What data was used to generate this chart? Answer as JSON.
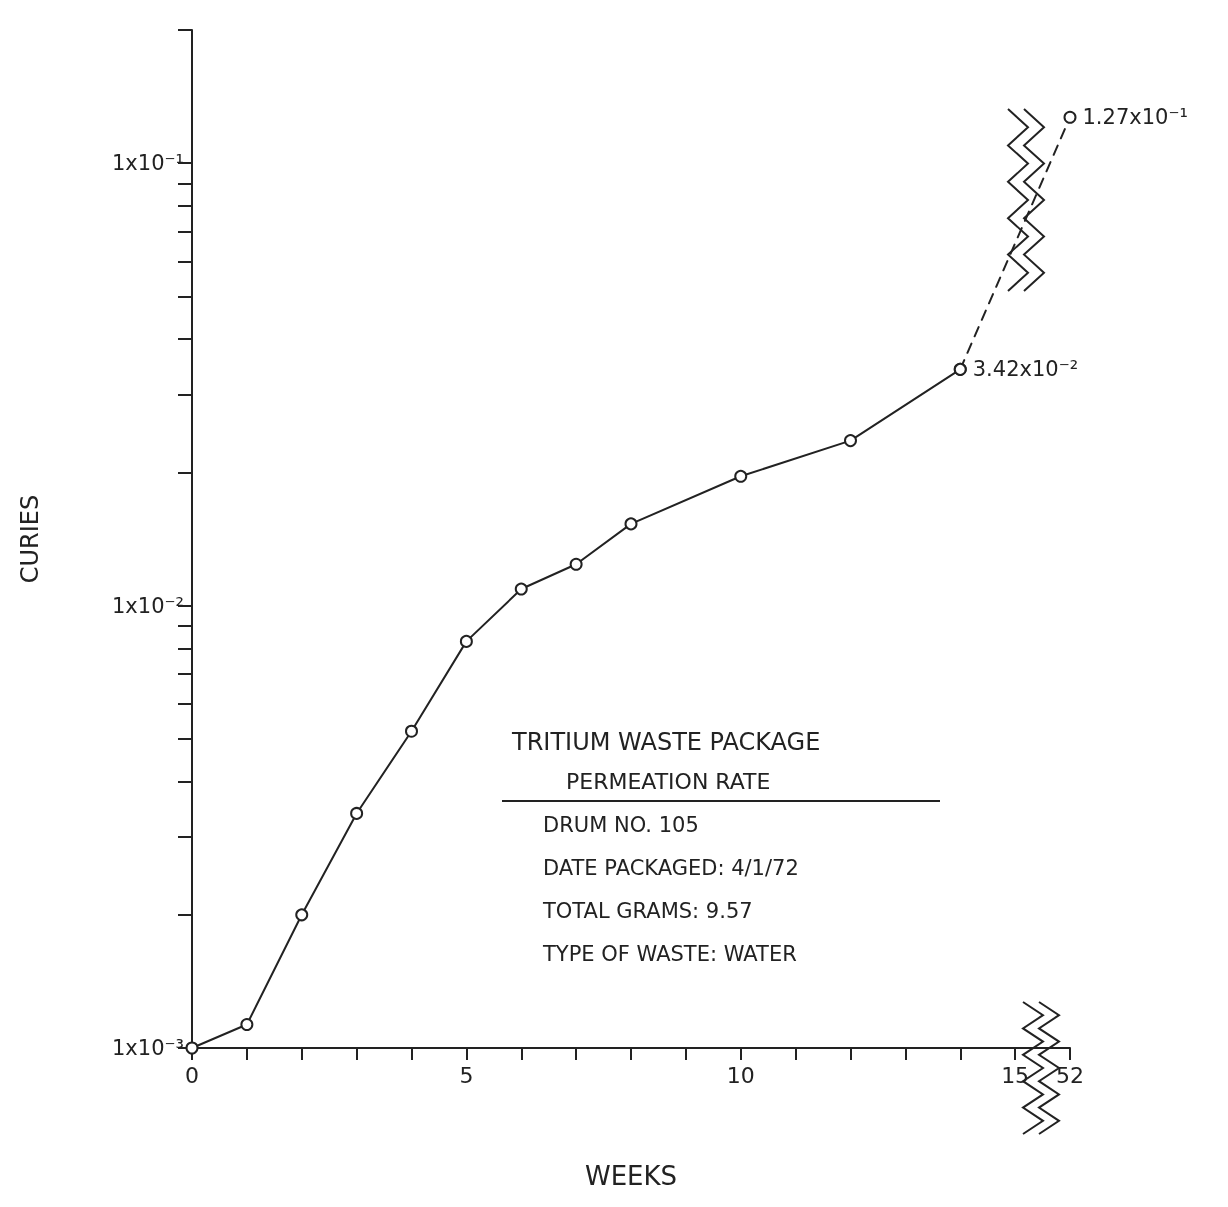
{
  "chart_data": {
    "type": "line",
    "title": "TRITIUM WASTE PACKAGE",
    "subtitle": "PERMEATION RATE",
    "annotations": [
      "DRUM NO. 105",
      "DATE PACKAGED: 4/1/72",
      "TOTAL GRAMS: 9.57",
      "TYPE OF WASTE: WATER"
    ],
    "xlabel": "WEEKS",
    "ylabel": "CURIES",
    "categories": [
      "0",
      null,
      null,
      null,
      null,
      "5",
      null,
      null,
      null,
      null,
      "10",
      null,
      null,
      null,
      null,
      "15",
      "52"
    ],
    "series": [
      {
        "color": "#222222",
        "line_style": "solid",
        "values": [
          0.001,
          0.00113,
          0.002,
          0.00339,
          0.0052,
          0.0083,
          0.0109,
          0.0124,
          0.0153,
          null,
          0.0196,
          null,
          0.0236,
          null,
          0.0342,
          null,
          null
        ]
      },
      {
        "color": "#222222",
        "line_style": "dashed",
        "values": [
          null,
          null,
          null,
          null,
          null,
          null,
          null,
          null,
          null,
          null,
          null,
          null,
          null,
          null,
          0.0342,
          null,
          0.127
        ],
        "value_labels": [
          null,
          null,
          null,
          null,
          null,
          null,
          null,
          null,
          null,
          null,
          null,
          null,
          null,
          null,
          "3.42x10⁻²",
          null,
          "1.27x10⁻¹"
        ]
      }
    ],
    "log": true,
    "ylim": [
      0.001,
      0.2
    ],
    "yticks": [
      {
        "value": 0.001,
        "label": "1x10⁻³"
      },
      {
        "value": 0.002,
        "label": null
      },
      {
        "value": 0.003,
        "label": null
      },
      {
        "value": 0.004,
        "label": null
      },
      {
        "value": 0.005,
        "label": null
      },
      {
        "value": 0.006,
        "label": null
      },
      {
        "value": 0.007,
        "label": null
      },
      {
        "value": 0.008,
        "label": null
      },
      {
        "value": 0.009,
        "label": null
      },
      {
        "value": 0.01,
        "label": "1x10⁻²"
      },
      {
        "value": 0.02,
        "label": null
      },
      {
        "value": 0.03,
        "label": null
      },
      {
        "value": 0.04,
        "label": null
      },
      {
        "value": 0.05,
        "label": null
      },
      {
        "value": 0.06,
        "label": null
      },
      {
        "value": 0.07,
        "label": null
      },
      {
        "value": 0.08,
        "label": null
      },
      {
        "value": 0.09,
        "label": null
      },
      {
        "value": 0.1,
        "label": "1x10⁻¹"
      },
      {
        "value": 0.2,
        "label": null
      }
    ],
    "grid": false,
    "marker": "circle"
  }
}
